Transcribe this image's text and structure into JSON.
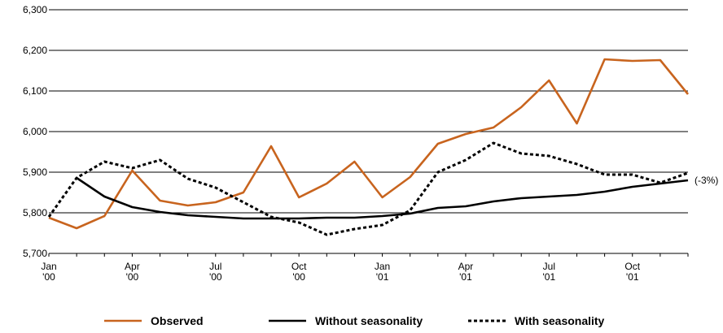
{
  "chart_data": {
    "type": "line",
    "categories": [
      "Jan '00",
      null,
      null,
      "Apr '00",
      null,
      null,
      "Jul '00",
      null,
      null,
      "Oct '00",
      null,
      null,
      "Jan '01",
      null,
      null,
      "Apr '01",
      null,
      null,
      "Jul '01",
      null,
      null,
      "Oct '01",
      null,
      null
    ],
    "series": [
      {
        "name": "Observed",
        "color": "#c8641e",
        "style": "solid",
        "values": [
          5788,
          5762,
          5792,
          5904,
          5830,
          5818,
          5826,
          5850,
          5964,
          5838,
          5872,
          5926,
          5838,
          5888,
          5970,
          5994,
          6010,
          6060,
          6126,
          6020,
          6178,
          6174,
          6176,
          6092
        ]
      },
      {
        "name": "Without seasonality",
        "color": "#000000",
        "style": "solid",
        "values": [
          null,
          5886,
          5840,
          5814,
          5802,
          5794,
          5790,
          5786,
          5786,
          5786,
          5788,
          5788,
          5792,
          5798,
          5812,
          5816,
          5828,
          5836,
          5840,
          5844,
          5852,
          5864,
          5872,
          5880
        ]
      },
      {
        "name": "With seasonality",
        "color": "#000000",
        "style": "dashed",
        "values": [
          5790,
          5886,
          5926,
          5910,
          5930,
          5884,
          5862,
          5826,
          5790,
          5776,
          5746,
          5760,
          5770,
          5806,
          5900,
          5930,
          5972,
          5946,
          5940,
          5920,
          5894,
          5894,
          5874,
          5898
        ]
      }
    ],
    "annotation": "(-3%)",
    "ylim": [
      5700,
      6300
    ],
    "yticks": [
      {
        "value": 5700,
        "label": "5,700"
      },
      {
        "value": 5800,
        "label": "5,800"
      },
      {
        "value": 5900,
        "label": "5,900"
      },
      {
        "value": 6000,
        "label": "6,000"
      },
      {
        "value": 6100,
        "label": "6,100"
      },
      {
        "value": 6200,
        "label": "6,200"
      },
      {
        "value": 6300,
        "label": "6,300"
      }
    ],
    "grid": true,
    "legend": "bottom"
  }
}
